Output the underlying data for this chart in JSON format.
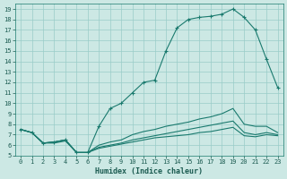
{
  "xlabel": "Humidex (Indice chaleur)",
  "bg_color": "#cce8e4",
  "grid_color": "#99ccc8",
  "line_color": "#1a7a6e",
  "xlim": [
    -0.5,
    23.5
  ],
  "ylim": [
    5,
    19.5
  ],
  "xticks": [
    0,
    1,
    2,
    3,
    4,
    5,
    6,
    7,
    8,
    9,
    10,
    11,
    12,
    13,
    14,
    15,
    16,
    17,
    18,
    19,
    20,
    21,
    22,
    23
  ],
  "yticks": [
    5,
    6,
    7,
    8,
    9,
    10,
    11,
    12,
    13,
    14,
    15,
    16,
    17,
    18,
    19
  ],
  "lines": [
    {
      "x": [
        0,
        1,
        2,
        3,
        4,
        5,
        6,
        7,
        8,
        9,
        10,
        11,
        12,
        13,
        14,
        15,
        16,
        17,
        18,
        19,
        20,
        21,
        22,
        23
      ],
      "y": [
        7.5,
        7.2,
        6.2,
        6.3,
        6.5,
        5.3,
        5.3,
        7.8,
        9.5,
        10.0,
        11.0,
        12.0,
        12.2,
        15.0,
        17.2,
        18.0,
        18.2,
        18.3,
        18.5,
        19.0,
        18.2,
        17.0,
        14.2,
        11.5
      ],
      "marker": true
    },
    {
      "x": [
        0,
        1,
        2,
        3,
        4,
        5,
        6,
        7,
        8,
        9,
        10,
        11,
        12,
        13,
        14,
        15,
        16,
        17,
        18,
        19,
        20,
        21,
        22,
        23
      ],
      "y": [
        7.5,
        7.2,
        6.2,
        6.3,
        6.5,
        5.3,
        5.3,
        6.0,
        6.3,
        6.5,
        7.0,
        7.3,
        7.5,
        7.8,
        8.0,
        8.2,
        8.5,
        8.7,
        9.0,
        9.5,
        8.0,
        7.8,
        7.8,
        7.2
      ],
      "marker": false
    },
    {
      "x": [
        0,
        1,
        2,
        3,
        4,
        5,
        6,
        7,
        8,
        9,
        10,
        11,
        12,
        13,
        14,
        15,
        16,
        17,
        18,
        19,
        20,
        21,
        22,
        23
      ],
      "y": [
        7.5,
        7.2,
        6.2,
        6.3,
        6.5,
        5.3,
        5.3,
        5.8,
        6.0,
        6.2,
        6.5,
        6.7,
        6.9,
        7.1,
        7.3,
        7.5,
        7.7,
        7.9,
        8.1,
        8.3,
        7.2,
        7.0,
        7.2,
        7.0
      ],
      "marker": false
    },
    {
      "x": [
        0,
        1,
        2,
        3,
        4,
        5,
        6,
        7,
        8,
        9,
        10,
        11,
        12,
        13,
        14,
        15,
        16,
        17,
        18,
        19,
        20,
        21,
        22,
        23
      ],
      "y": [
        7.5,
        7.2,
        6.2,
        6.2,
        6.4,
        5.3,
        5.3,
        5.7,
        5.9,
        6.1,
        6.3,
        6.5,
        6.7,
        6.8,
        6.9,
        7.0,
        7.2,
        7.3,
        7.5,
        7.7,
        6.9,
        6.8,
        7.0,
        6.9
      ],
      "marker": false
    }
  ]
}
